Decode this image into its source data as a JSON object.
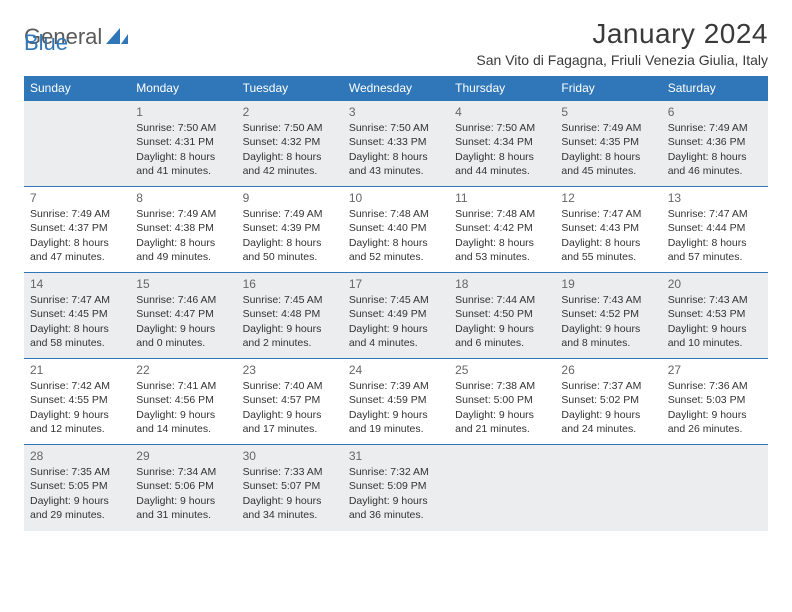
{
  "brand": {
    "word1": "General",
    "word2": "Blue"
  },
  "title": "January 2024",
  "location": "San Vito di Fagagna, Friuli Venezia Giulia, Italy",
  "colors": {
    "header_bg": "#2f77b8",
    "header_text": "#ffffff",
    "shaded_bg": "#ecedee",
    "cell_bg": "#ffffff",
    "text": "#333333",
    "daynum": "#666666",
    "rule": "#2f77b8"
  },
  "weekdays": [
    "Sunday",
    "Monday",
    "Tuesday",
    "Wednesday",
    "Thursday",
    "Friday",
    "Saturday"
  ],
  "weeks": [
    [
      {
        "n": "",
        "sunrise": "",
        "sunset": "",
        "daylight": ""
      },
      {
        "n": "1",
        "sunrise": "Sunrise: 7:50 AM",
        "sunset": "Sunset: 4:31 PM",
        "daylight": "Daylight: 8 hours and 41 minutes."
      },
      {
        "n": "2",
        "sunrise": "Sunrise: 7:50 AM",
        "sunset": "Sunset: 4:32 PM",
        "daylight": "Daylight: 8 hours and 42 minutes."
      },
      {
        "n": "3",
        "sunrise": "Sunrise: 7:50 AM",
        "sunset": "Sunset: 4:33 PM",
        "daylight": "Daylight: 8 hours and 43 minutes."
      },
      {
        "n": "4",
        "sunrise": "Sunrise: 7:50 AM",
        "sunset": "Sunset: 4:34 PM",
        "daylight": "Daylight: 8 hours and 44 minutes."
      },
      {
        "n": "5",
        "sunrise": "Sunrise: 7:49 AM",
        "sunset": "Sunset: 4:35 PM",
        "daylight": "Daylight: 8 hours and 45 minutes."
      },
      {
        "n": "6",
        "sunrise": "Sunrise: 7:49 AM",
        "sunset": "Sunset: 4:36 PM",
        "daylight": "Daylight: 8 hours and 46 minutes."
      }
    ],
    [
      {
        "n": "7",
        "sunrise": "Sunrise: 7:49 AM",
        "sunset": "Sunset: 4:37 PM",
        "daylight": "Daylight: 8 hours and 47 minutes."
      },
      {
        "n": "8",
        "sunrise": "Sunrise: 7:49 AM",
        "sunset": "Sunset: 4:38 PM",
        "daylight": "Daylight: 8 hours and 49 minutes."
      },
      {
        "n": "9",
        "sunrise": "Sunrise: 7:49 AM",
        "sunset": "Sunset: 4:39 PM",
        "daylight": "Daylight: 8 hours and 50 minutes."
      },
      {
        "n": "10",
        "sunrise": "Sunrise: 7:48 AM",
        "sunset": "Sunset: 4:40 PM",
        "daylight": "Daylight: 8 hours and 52 minutes."
      },
      {
        "n": "11",
        "sunrise": "Sunrise: 7:48 AM",
        "sunset": "Sunset: 4:42 PM",
        "daylight": "Daylight: 8 hours and 53 minutes."
      },
      {
        "n": "12",
        "sunrise": "Sunrise: 7:47 AM",
        "sunset": "Sunset: 4:43 PM",
        "daylight": "Daylight: 8 hours and 55 minutes."
      },
      {
        "n": "13",
        "sunrise": "Sunrise: 7:47 AM",
        "sunset": "Sunset: 4:44 PM",
        "daylight": "Daylight: 8 hours and 57 minutes."
      }
    ],
    [
      {
        "n": "14",
        "sunrise": "Sunrise: 7:47 AM",
        "sunset": "Sunset: 4:45 PM",
        "daylight": "Daylight: 8 hours and 58 minutes."
      },
      {
        "n": "15",
        "sunrise": "Sunrise: 7:46 AM",
        "sunset": "Sunset: 4:47 PM",
        "daylight": "Daylight: 9 hours and 0 minutes."
      },
      {
        "n": "16",
        "sunrise": "Sunrise: 7:45 AM",
        "sunset": "Sunset: 4:48 PM",
        "daylight": "Daylight: 9 hours and 2 minutes."
      },
      {
        "n": "17",
        "sunrise": "Sunrise: 7:45 AM",
        "sunset": "Sunset: 4:49 PM",
        "daylight": "Daylight: 9 hours and 4 minutes."
      },
      {
        "n": "18",
        "sunrise": "Sunrise: 7:44 AM",
        "sunset": "Sunset: 4:50 PM",
        "daylight": "Daylight: 9 hours and 6 minutes."
      },
      {
        "n": "19",
        "sunrise": "Sunrise: 7:43 AM",
        "sunset": "Sunset: 4:52 PM",
        "daylight": "Daylight: 9 hours and 8 minutes."
      },
      {
        "n": "20",
        "sunrise": "Sunrise: 7:43 AM",
        "sunset": "Sunset: 4:53 PM",
        "daylight": "Daylight: 9 hours and 10 minutes."
      }
    ],
    [
      {
        "n": "21",
        "sunrise": "Sunrise: 7:42 AM",
        "sunset": "Sunset: 4:55 PM",
        "daylight": "Daylight: 9 hours and 12 minutes."
      },
      {
        "n": "22",
        "sunrise": "Sunrise: 7:41 AM",
        "sunset": "Sunset: 4:56 PM",
        "daylight": "Daylight: 9 hours and 14 minutes."
      },
      {
        "n": "23",
        "sunrise": "Sunrise: 7:40 AM",
        "sunset": "Sunset: 4:57 PM",
        "daylight": "Daylight: 9 hours and 17 minutes."
      },
      {
        "n": "24",
        "sunrise": "Sunrise: 7:39 AM",
        "sunset": "Sunset: 4:59 PM",
        "daylight": "Daylight: 9 hours and 19 minutes."
      },
      {
        "n": "25",
        "sunrise": "Sunrise: 7:38 AM",
        "sunset": "Sunset: 5:00 PM",
        "daylight": "Daylight: 9 hours and 21 minutes."
      },
      {
        "n": "26",
        "sunrise": "Sunrise: 7:37 AM",
        "sunset": "Sunset: 5:02 PM",
        "daylight": "Daylight: 9 hours and 24 minutes."
      },
      {
        "n": "27",
        "sunrise": "Sunrise: 7:36 AM",
        "sunset": "Sunset: 5:03 PM",
        "daylight": "Daylight: 9 hours and 26 minutes."
      }
    ],
    [
      {
        "n": "28",
        "sunrise": "Sunrise: 7:35 AM",
        "sunset": "Sunset: 5:05 PM",
        "daylight": "Daylight: 9 hours and 29 minutes."
      },
      {
        "n": "29",
        "sunrise": "Sunrise: 7:34 AM",
        "sunset": "Sunset: 5:06 PM",
        "daylight": "Daylight: 9 hours and 31 minutes."
      },
      {
        "n": "30",
        "sunrise": "Sunrise: 7:33 AM",
        "sunset": "Sunset: 5:07 PM",
        "daylight": "Daylight: 9 hours and 34 minutes."
      },
      {
        "n": "31",
        "sunrise": "Sunrise: 7:32 AM",
        "sunset": "Sunset: 5:09 PM",
        "daylight": "Daylight: 9 hours and 36 minutes."
      },
      {
        "n": "",
        "sunrise": "",
        "sunset": "",
        "daylight": ""
      },
      {
        "n": "",
        "sunrise": "",
        "sunset": "",
        "daylight": ""
      },
      {
        "n": "",
        "sunrise": "",
        "sunset": "",
        "daylight": ""
      }
    ]
  ]
}
